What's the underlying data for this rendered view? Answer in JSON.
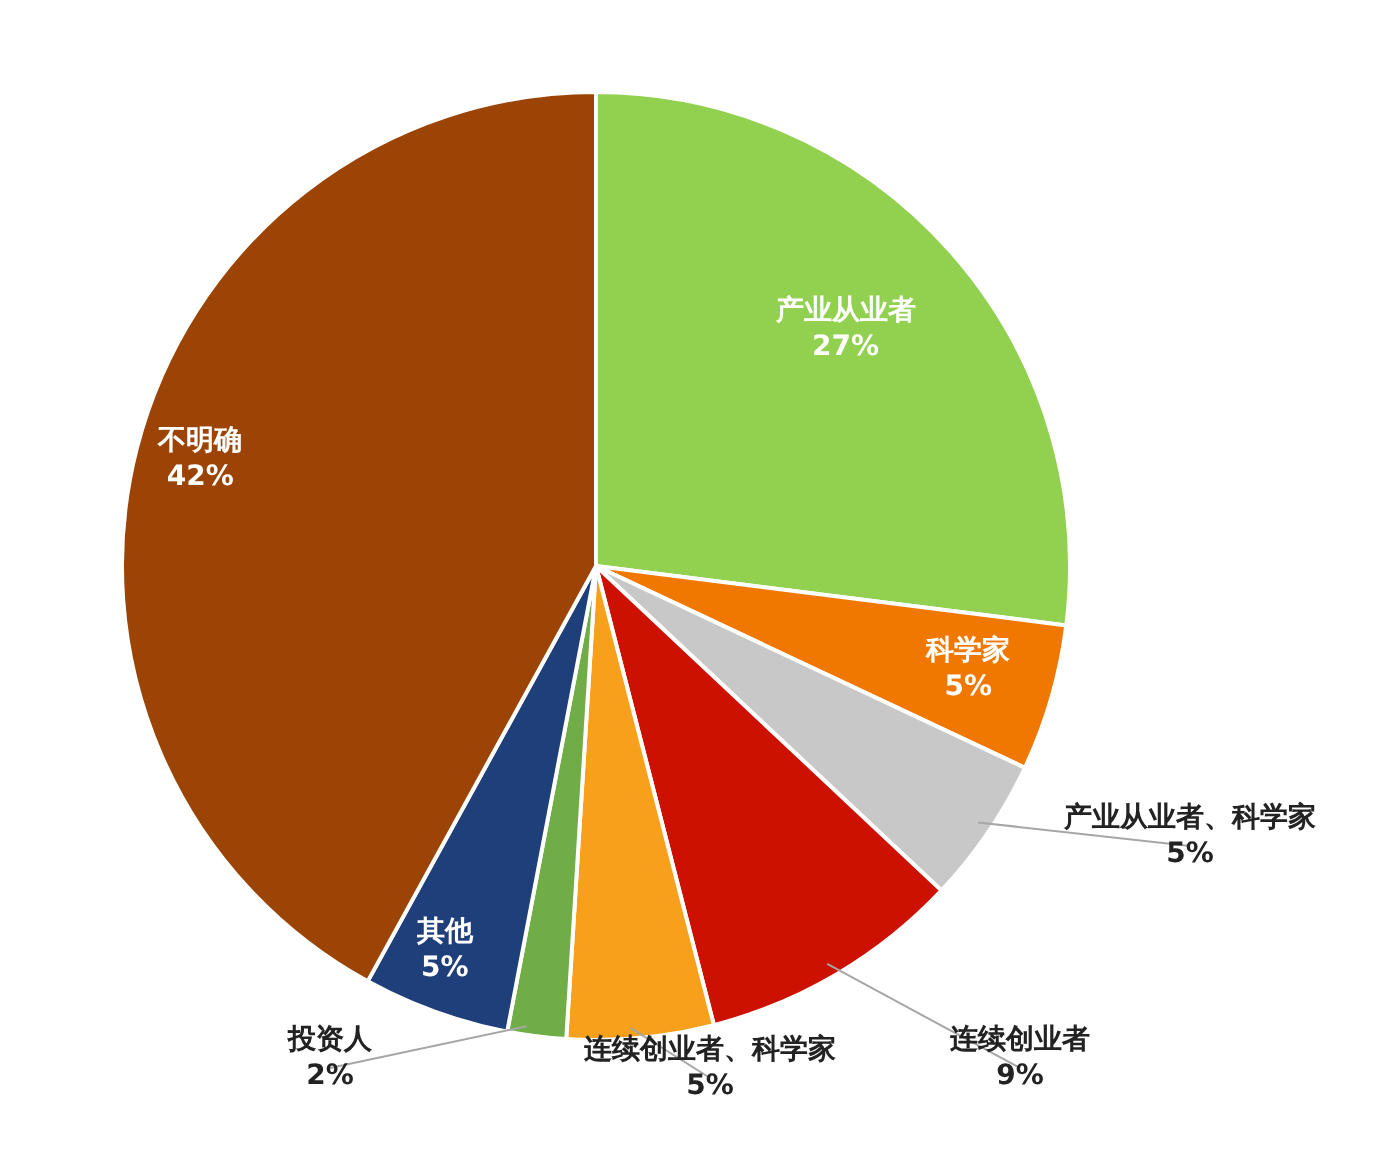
{
  "chart_data": {
    "type": "pie",
    "categories": [
      "产业从业者",
      "科学家",
      "产业从业者、科学家",
      "连续创业者",
      "连续创业者、科学家",
      "投资人",
      "其他",
      "不明确"
    ],
    "values": [
      27,
      5,
      5,
      9,
      5,
      2,
      5,
      42
    ],
    "value_labels": [
      "27%",
      "5%",
      "5%",
      "9%",
      "5%",
      "2%",
      "5%",
      "42%"
    ],
    "colors": [
      "#92d050",
      "#f07800",
      "#c8c8c8",
      "#cc1100",
      "#f8a01c",
      "#70ad47",
      "#1f3f7a",
      "#9c4405"
    ],
    "legend": false
  }
}
